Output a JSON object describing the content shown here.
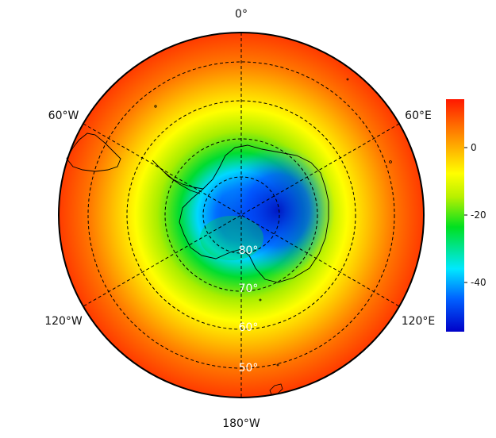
{
  "map": {
    "projection": "south-polar-stereographic",
    "longitude_labels": {
      "top": "0°",
      "upper_left": "60°W",
      "upper_right": "60°E",
      "lower_left": "120°W",
      "lower_right": "120°E",
      "bottom": "180°W"
    },
    "latitude_labels": [
      "80°",
      "70°",
      "60°",
      "50°"
    ],
    "graticule_style": "dashed",
    "field_description": "colour-filled scalar field, minimum over East Antarctica, increasing toward outer ring"
  },
  "colorbar": {
    "ticks": [
      "0",
      "-20",
      "-40"
    ],
    "range": [
      -55,
      14
    ],
    "colors": [
      "#0000c8",
      "#0060ff",
      "#00e8ff",
      "#00e020",
      "#b8f000",
      "#ffff00",
      "#ffb800",
      "#ff6a00",
      "#ff1800"
    ]
  }
}
